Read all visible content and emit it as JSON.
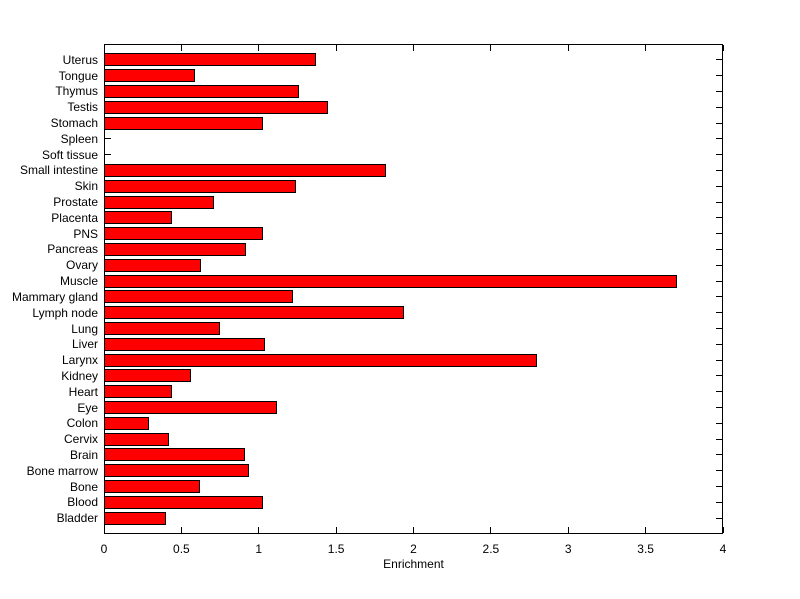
{
  "chart_data": {
    "type": "bar",
    "orientation": "horizontal",
    "title": "",
    "xlabel": "Enrichment",
    "ylabel": "",
    "xlim": [
      0,
      4
    ],
    "x_ticks": [
      0,
      0.5,
      1,
      1.5,
      2,
      2.5,
      3,
      3.5,
      4
    ],
    "x_tick_labels": [
      "0",
      "0.5",
      "1",
      "1.5",
      "2",
      "2.5",
      "3",
      "3.5",
      "4"
    ],
    "categories": [
      "Uterus",
      "Tongue",
      "Thymus",
      "Testis",
      "Stomach",
      "Spleen",
      "Soft tissue",
      "Small intestine",
      "Skin",
      "Prostate",
      "Placenta",
      "PNS",
      "Pancreas",
      "Ovary",
      "Muscle",
      "Mammary gland",
      "Lymph node",
      "Lung",
      "Liver",
      "Larynx",
      "Kidney",
      "Heart",
      "Eye",
      "Colon",
      "Cervix",
      "Brain",
      "Bone marrow",
      "Bone",
      "Blood",
      "Bladder"
    ],
    "values": [
      1.37,
      0.59,
      1.26,
      1.45,
      1.03,
      0,
      0,
      1.82,
      1.24,
      0.71,
      0.44,
      1.03,
      0.92,
      0.63,
      3.7,
      1.22,
      1.94,
      0.75,
      1.04,
      2.8,
      0.56,
      0.44,
      1.12,
      0.29,
      0.42,
      0.91,
      0.94,
      0.62,
      1.03,
      0.4
    ],
    "bar_color": "#ff0000",
    "bar_edge_color": "#000000",
    "axis_color": "#000000",
    "background_color": "#ffffff",
    "grid": false,
    "legend_position": "none"
  }
}
